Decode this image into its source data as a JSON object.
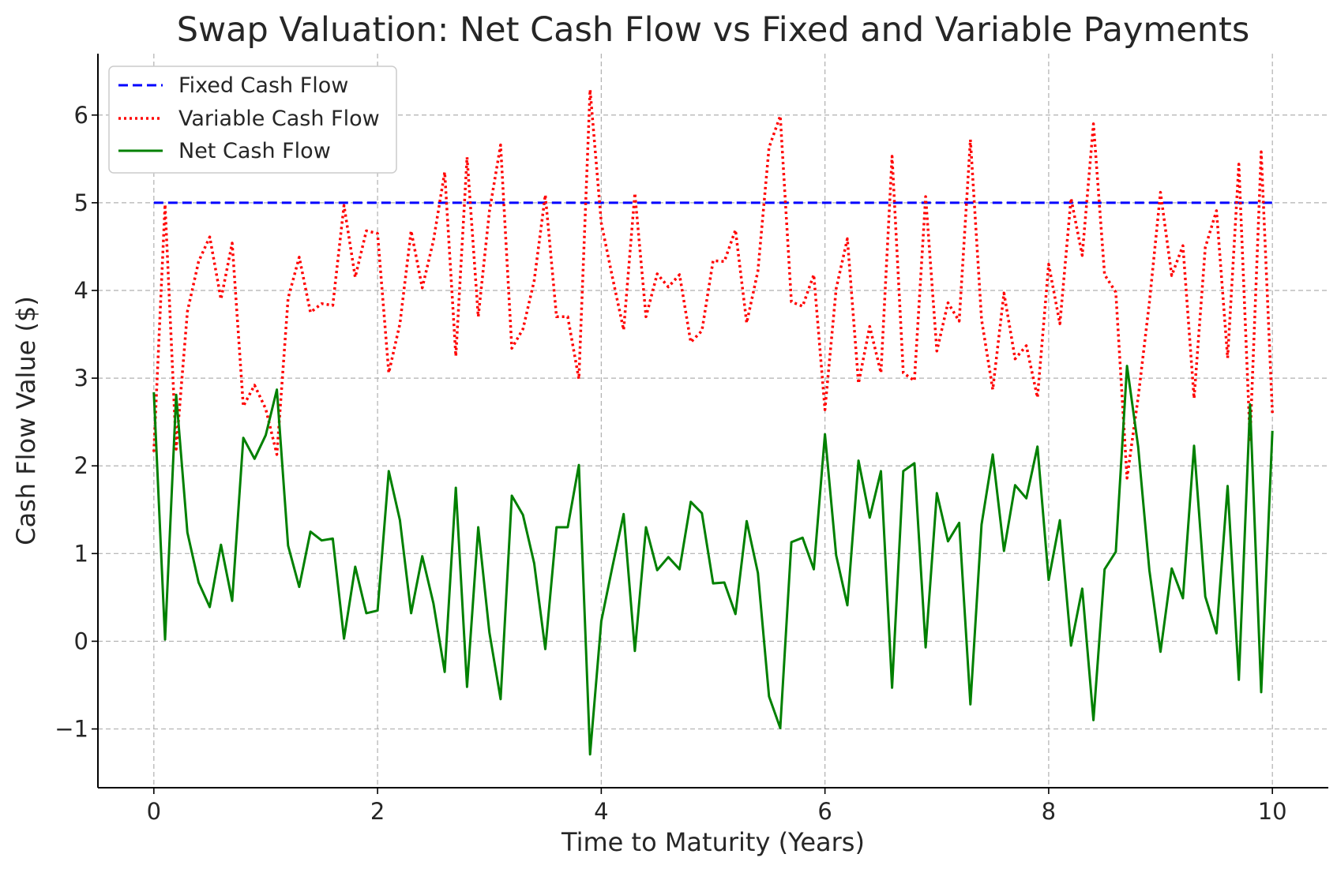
{
  "chart_data": {
    "type": "line",
    "title": "Swap Valuation: Net Cash Flow vs Fixed and Variable Payments",
    "xlabel": "Time to Maturity (Years)",
    "ylabel": "Cash Flow Value ($)",
    "xlim": [
      -0.5,
      10.5
    ],
    "ylim": [
      -1.67,
      6.7
    ],
    "xticks": [
      0,
      2,
      4,
      6,
      8,
      10
    ],
    "xtick_labels": [
      "0",
      "2",
      "4",
      "6",
      "8",
      "10"
    ],
    "yticks": [
      -1,
      0,
      1,
      2,
      3,
      4,
      5,
      6
    ],
    "ytick_labels": [
      "−1",
      "0",
      "1",
      "2",
      "3",
      "4",
      "5",
      "6"
    ],
    "grid": true,
    "legend_position": "top-left",
    "x": [
      0,
      0.1,
      0.2,
      0.3,
      0.4,
      0.5,
      0.6,
      0.7,
      0.8,
      0.9,
      1.0,
      1.1,
      1.2,
      1.3,
      1.4,
      1.5,
      1.6,
      1.7,
      1.8,
      1.9,
      2.0,
      2.1,
      2.2,
      2.3,
      2.4,
      2.5,
      2.6,
      2.7,
      2.8,
      2.9,
      3.0,
      3.1,
      3.2,
      3.3,
      3.4,
      3.5,
      3.6,
      3.7,
      3.8,
      3.9,
      4.0,
      4.1,
      4.2,
      4.3,
      4.4,
      4.5,
      4.6,
      4.7,
      4.8,
      4.9,
      5.0,
      5.1,
      5.2,
      5.3,
      5.4,
      5.5,
      5.6,
      5.7,
      5.8,
      5.9,
      6.0,
      6.1,
      6.2,
      6.3,
      6.4,
      6.5,
      6.6,
      6.7,
      6.8,
      6.9,
      7.0,
      7.1,
      7.2,
      7.3,
      7.4,
      7.5,
      7.6,
      7.7,
      7.8,
      7.9,
      8.0,
      8.1,
      8.2,
      8.3,
      8.4,
      8.5,
      8.6,
      8.7,
      8.8,
      8.9,
      9.0,
      9.1,
      9.2,
      9.3,
      9.4,
      9.5,
      9.6,
      9.7,
      9.8,
      9.9,
      10.0
    ],
    "series": [
      {
        "name": "Fixed Cash Flow",
        "color": "#0000ff",
        "style": "dashed",
        "values": [
          5,
          5,
          5,
          5,
          5,
          5,
          5,
          5,
          5,
          5,
          5,
          5,
          5,
          5,
          5,
          5,
          5,
          5,
          5,
          5,
          5,
          5,
          5,
          5,
          5,
          5,
          5,
          5,
          5,
          5,
          5,
          5,
          5,
          5,
          5,
          5,
          5,
          5,
          5,
          5,
          5,
          5,
          5,
          5,
          5,
          5,
          5,
          5,
          5,
          5,
          5,
          5,
          5,
          5,
          5,
          5,
          5,
          5,
          5,
          5,
          5,
          5,
          5,
          5,
          5,
          5,
          5,
          5,
          5,
          5,
          5,
          5,
          5,
          5,
          5,
          5,
          5,
          5,
          5,
          5,
          5,
          5,
          5,
          5,
          5,
          5,
          5,
          5,
          5,
          5,
          5,
          5,
          5,
          5,
          5,
          5,
          5,
          5,
          5,
          5,
          5
        ]
      },
      {
        "name": "Variable Cash Flow",
        "color": "#ff0000",
        "style": "dotted",
        "values": [
          2.16,
          4.98,
          2.19,
          3.76,
          4.33,
          4.61,
          3.9,
          4.54,
          2.68,
          2.92,
          2.65,
          2.13,
          3.91,
          4.38,
          3.75,
          3.85,
          3.83,
          4.97,
          4.15,
          4.68,
          4.65,
          3.06,
          3.62,
          4.68,
          4.03,
          4.57,
          5.35,
          3.25,
          5.52,
          3.7,
          4.9,
          5.66,
          3.34,
          3.56,
          4.11,
          5.09,
          3.7,
          3.7,
          2.99,
          6.29,
          4.77,
          4.15,
          3.55,
          5.11,
          3.7,
          4.19,
          4.04,
          4.18,
          3.41,
          3.54,
          4.34,
          4.33,
          4.69,
          3.63,
          4.22,
          5.63,
          5.99,
          3.87,
          3.82,
          4.18,
          2.64,
          4.02,
          4.59,
          2.94,
          3.59,
          3.06,
          5.53,
          3.06,
          2.97,
          5.07,
          3.31,
          3.86,
          3.65,
          5.72,
          3.67,
          2.87,
          3.97,
          3.22,
          3.37,
          2.78,
          4.3,
          3.62,
          5.05,
          4.4,
          5.9,
          4.18,
          3.98,
          1.86,
          2.78,
          3.86,
          5.12,
          4.17,
          4.51,
          2.77,
          4.49,
          4.91,
          3.23,
          5.44,
          2.3,
          5.58,
          2.6
        ]
      },
      {
        "name": "Net Cash Flow",
        "color": "#008000",
        "style": "solid",
        "values": [
          2.84,
          0.02,
          2.81,
          1.24,
          0.67,
          0.39,
          1.1,
          0.46,
          2.32,
          2.08,
          2.35,
          2.87,
          1.09,
          0.62,
          1.25,
          1.15,
          1.17,
          0.03,
          0.85,
          0.32,
          0.35,
          1.94,
          1.38,
          0.32,
          0.97,
          0.43,
          -0.35,
          1.75,
          -0.52,
          1.3,
          0.1,
          -0.66,
          1.66,
          1.44,
          0.89,
          -0.09,
          1.3,
          1.3,
          2.01,
          -1.29,
          0.23,
          0.85,
          1.45,
          -0.11,
          1.3,
          0.81,
          0.96,
          0.82,
          1.59,
          1.46,
          0.66,
          0.67,
          0.31,
          1.37,
          0.78,
          -0.63,
          -0.99,
          1.13,
          1.18,
          0.82,
          2.36,
          0.98,
          0.41,
          2.06,
          1.41,
          1.94,
          -0.53,
          1.94,
          2.03,
          -0.07,
          1.69,
          1.14,
          1.35,
          -0.72,
          1.33,
          2.13,
          1.03,
          1.78,
          1.63,
          2.22,
          0.7,
          1.38,
          -0.05,
          0.6,
          -0.9,
          0.82,
          1.02,
          3.14,
          2.22,
          0.81,
          -0.12,
          0.83,
          0.49,
          2.23,
          0.51,
          0.09,
          1.77,
          -0.44,
          2.7,
          -0.58,
          2.4
        ]
      }
    ]
  }
}
